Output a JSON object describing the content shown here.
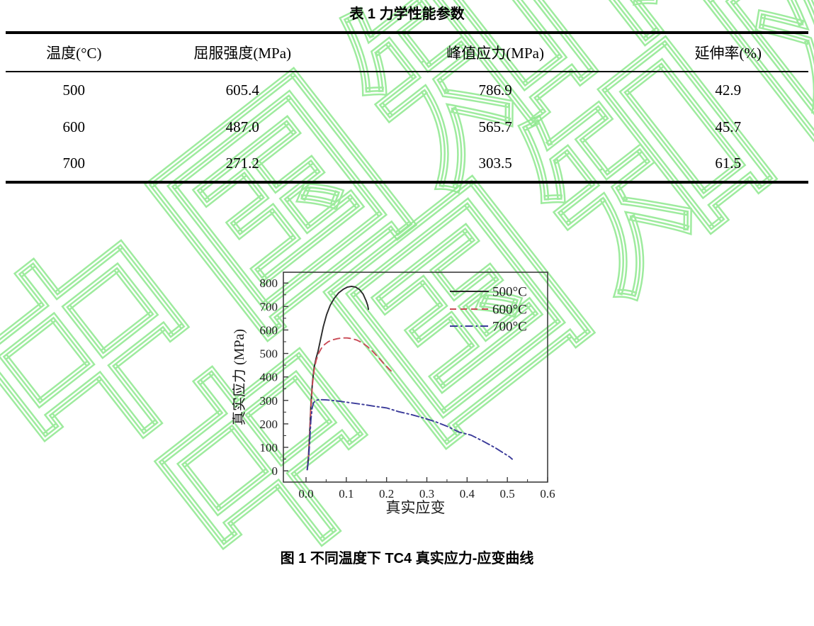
{
  "document": {
    "table_title": "表 1  力学性能参数",
    "table": {
      "headers": [
        "温度(°C)",
        "屈服强度(MPa)",
        "峰值应力(MPa)",
        "延伸率(%)"
      ],
      "rows": [
        [
          "500",
          "605.4",
          "786.9",
          "42.9"
        ],
        [
          "600",
          "487.0",
          "565.7",
          "45.7"
        ],
        [
          "700",
          "271.2",
          "303.5",
          "61.5"
        ]
      ]
    },
    "figure_caption": "图 1  不同温度下 TC4 真实应力-应变曲线"
  },
  "watermark": {
    "text": "中国知网",
    "color": "#8ee88e"
  },
  "chart_data": {
    "type": "line",
    "title": "",
    "xlabel": "真实应变",
    "ylabel": "真实应力 (MPa)",
    "xlim": [
      -0.0563,
      0.6
    ],
    "ylim": [
      -48,
      846
    ],
    "xticks": [
      0.0,
      0.1,
      0.2,
      0.3,
      0.4,
      0.5,
      0.6
    ],
    "yticks": [
      0,
      100,
      200,
      300,
      400,
      500,
      600,
      700,
      800
    ],
    "grid": false,
    "legend_position": "top-right",
    "axis_color": "#3d3d3d",
    "series": [
      {
        "name": "500°C",
        "color": "#2b2b2b",
        "style": "solid",
        "x": [
          0.003,
          0.006,
          0.009,
          0.012,
          0.016,
          0.02,
          0.025,
          0.03,
          0.036,
          0.043,
          0.051,
          0.06,
          0.07,
          0.081,
          0.092,
          0.103,
          0.113,
          0.123,
          0.133,
          0.142,
          0.149,
          0.153,
          0.155
        ],
        "y": [
          5,
          60,
          160,
          280,
          380,
          440,
          480,
          510,
          560,
          615,
          665,
          705,
          735,
          758,
          773,
          783,
          786,
          783,
          772,
          752,
          725,
          705,
          688
        ]
      },
      {
        "name": "600°C",
        "color": "#c94a56",
        "style": "dashed",
        "x": [
          0.003,
          0.006,
          0.009,
          0.012,
          0.016,
          0.02,
          0.025,
          0.031,
          0.038,
          0.046,
          0.055,
          0.066,
          0.078,
          0.09,
          0.102,
          0.114,
          0.126,
          0.139,
          0.152,
          0.166,
          0.18,
          0.194,
          0.206,
          0.212
        ],
        "y": [
          5,
          55,
          150,
          270,
          370,
          430,
          470,
          500,
          522,
          538,
          550,
          558,
          563,
          566,
          566,
          563,
          557,
          546,
          530,
          508,
          482,
          455,
          434,
          424
        ]
      },
      {
        "name": "700°C",
        "color": "#3a3a99",
        "style": "dashdot",
        "x": [
          0.003,
          0.006,
          0.009,
          0.012,
          0.015,
          0.018,
          0.022,
          0.027,
          0.033,
          0.04,
          0.05,
          0.065,
          0.085,
          0.11,
          0.14,
          0.17,
          0.2,
          0.23,
          0.26,
          0.29,
          0.32,
          0.35,
          0.38,
          0.41,
          0.44,
          0.47,
          0.49,
          0.505,
          0.512
        ],
        "y": [
          5,
          45,
          120,
          215,
          265,
          288,
          297,
          301,
          303,
          303,
          302,
          300,
          296,
          290,
          283,
          275,
          268,
          252,
          240,
          226,
          210,
          190,
          165,
          152,
          126,
          98,
          76,
          60,
          50
        ]
      }
    ]
  }
}
